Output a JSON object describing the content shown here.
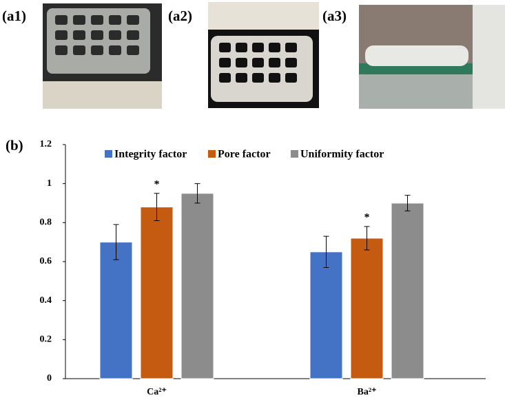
{
  "panels": {
    "a1": "(a1)",
    "a2": "(a2)",
    "a3": "(a3)",
    "b": "(b)"
  },
  "chart_data": {
    "type": "bar",
    "categories": [
      "Ca²⁺",
      "Ba²⁺"
    ],
    "series": [
      {
        "name": "Integrity factor",
        "color": "#4472c4",
        "values": [
          0.7,
          0.65
        ],
        "errors": [
          0.09,
          0.08
        ]
      },
      {
        "name": "Pore factor",
        "color": "#c55a11",
        "values": [
          0.88,
          0.72
        ],
        "errors": [
          0.07,
          0.06
        ],
        "annotations": [
          "*",
          "*"
        ]
      },
      {
        "name": "Uniformity factor",
        "color": "#8c8c8c",
        "values": [
          0.95,
          0.9
        ],
        "errors": [
          0.05,
          0.04
        ]
      }
    ],
    "ylim": [
      0,
      1.2
    ],
    "yticks": [
      0,
      0.2,
      0.4,
      0.6,
      0.8,
      1,
      1.2
    ],
    "grid": false,
    "legend": "top"
  }
}
